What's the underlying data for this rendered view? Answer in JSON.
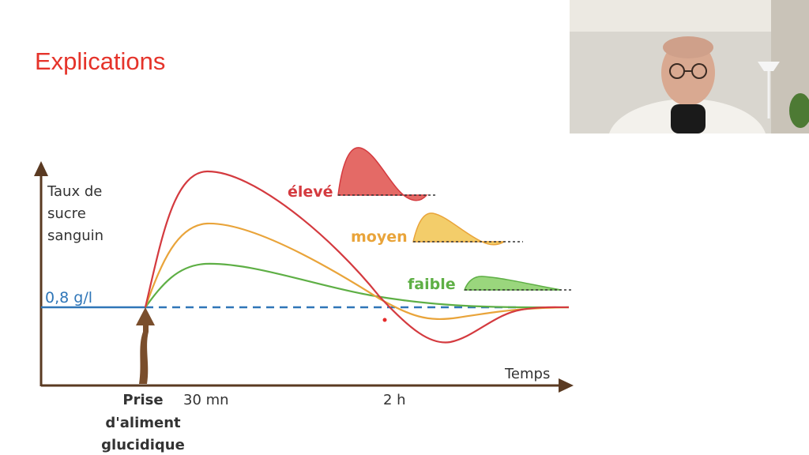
{
  "slide": {
    "title": "Explications"
  },
  "webcam": {
    "description_icon": "presenter-video-icon"
  },
  "chart_data": {
    "type": "line",
    "ylabel": [
      "Taux de",
      "sucre",
      "sanguin"
    ],
    "xlabel": "Temps",
    "baseline_label": "0,8 g/l",
    "x_ticks": [
      "30 mn",
      "2 h"
    ],
    "event_label": [
      "Prise",
      "d'aliment",
      "glucidique"
    ],
    "series": [
      {
        "name": "élevé",
        "color": "#d43a3f",
        "fill": "#e46a66"
      },
      {
        "name": "moyen",
        "color": "#e9a43a",
        "fill": "#f3cd6a"
      },
      {
        "name": "faible",
        "color": "#5eaf45",
        "fill": "#9ad67d"
      }
    ],
    "baseline_color": "#2f76b8",
    "axis_color": "#5a3a22",
    "arrow_color": "#7a4e2c"
  }
}
